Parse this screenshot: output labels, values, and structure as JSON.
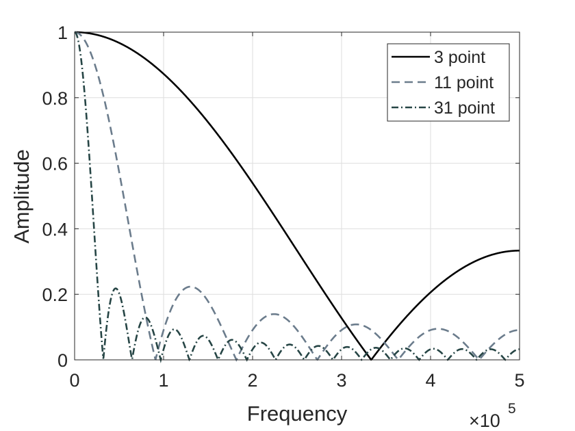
{
  "chart_data": {
    "type": "line",
    "xlabel": "Frequency",
    "ylabel": "Amplitude",
    "x_exponent_label": "×10",
    "x_exponent": "5",
    "x_multiplier": 100000,
    "xlim": [
      0,
      500000
    ],
    "ylim": [
      0,
      1
    ],
    "xticks": [
      0,
      1,
      2,
      3,
      4,
      5
    ],
    "yticks": [
      0,
      0.2,
      0.4,
      0.6,
      0.8,
      1
    ],
    "ytick_labels": [
      "0",
      "0.2",
      "0.4",
      "0.6",
      "0.8",
      "1"
    ],
    "grid": true,
    "legend_position": "top-right",
    "sample_rate": 1000000,
    "series": [
      {
        "name": "3 point",
        "N": 3,
        "color": "#000000",
        "dash": "solid"
      },
      {
        "name": "11 point",
        "N": 11,
        "color": "#6b7c8c",
        "dash": "dashed"
      },
      {
        "name": "31 point",
        "N": 31,
        "color": "#264545",
        "dash": "dashdot"
      }
    ]
  }
}
